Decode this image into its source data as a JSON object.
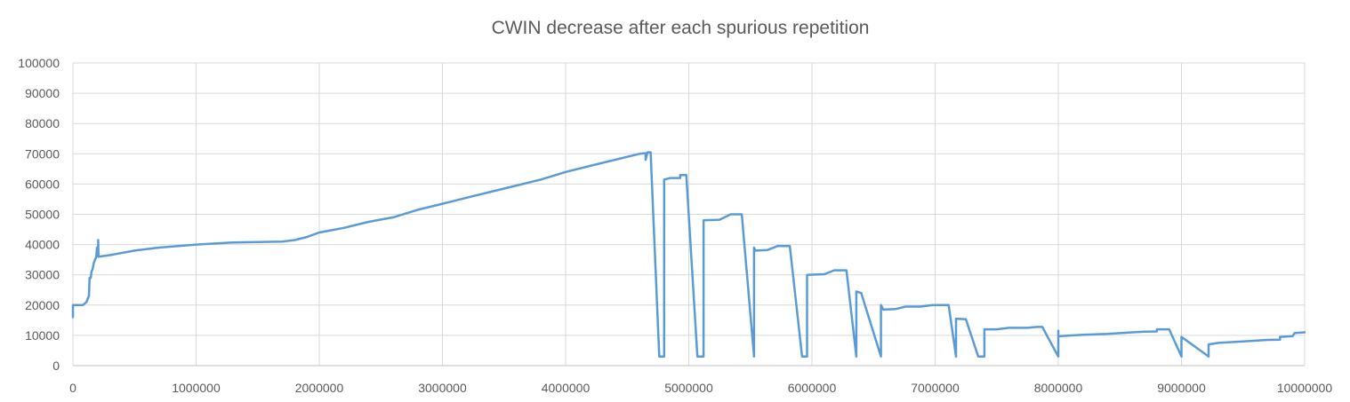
{
  "chart_data": {
    "type": "line",
    "title": "CWIN decrease after each spurious repetition",
    "xlabel": "",
    "ylabel": "",
    "xlim": [
      0,
      10000000
    ],
    "ylim": [
      0,
      100000
    ],
    "x_ticks": [
      "0",
      "1000000",
      "2000000",
      "3000000",
      "4000000",
      "5000000",
      "6000000",
      "7000000",
      "8000000",
      "9000000",
      "10000000"
    ],
    "y_ticks": [
      "0",
      "10000",
      "20000",
      "30000",
      "40000",
      "50000",
      "60000",
      "70000",
      "80000",
      "90000",
      "100000"
    ],
    "grid": true,
    "legend": "none",
    "colors": {
      "line": "#5b9bd5",
      "grid": "#d9d9d9",
      "text": "#595959"
    },
    "series": [
      {
        "points": [
          [
            0,
            16000
          ],
          [
            0,
            20000
          ],
          [
            80000,
            20000
          ],
          [
            110000,
            21000
          ],
          [
            130000,
            23000
          ],
          [
            135000,
            29000
          ],
          [
            145000,
            29000
          ],
          [
            150000,
            31000
          ],
          [
            160000,
            32000
          ],
          [
            170000,
            34000
          ],
          [
            180000,
            35000
          ],
          [
            190000,
            36000
          ],
          [
            195000,
            39000
          ],
          [
            205000,
            36000
          ],
          [
            205000,
            41500
          ],
          [
            208000,
            36000
          ],
          [
            300000,
            36500
          ],
          [
            500000,
            38000
          ],
          [
            700000,
            39000
          ],
          [
            1000000,
            40000
          ],
          [
            1300000,
            40700
          ],
          [
            1700000,
            41000
          ],
          [
            1800000,
            41500
          ],
          [
            1900000,
            42500
          ],
          [
            2000000,
            44000
          ],
          [
            2200000,
            45500
          ],
          [
            2400000,
            47500
          ],
          [
            2600000,
            49000
          ],
          [
            2800000,
            51500
          ],
          [
            3000000,
            53500
          ],
          [
            3200000,
            55500
          ],
          [
            3400000,
            57500
          ],
          [
            3600000,
            59500
          ],
          [
            3800000,
            61500
          ],
          [
            4000000,
            64000
          ],
          [
            4200000,
            66000
          ],
          [
            4400000,
            68000
          ],
          [
            4600000,
            70000
          ],
          [
            4650000,
            70200
          ],
          [
            4650000,
            68000
          ],
          [
            4665000,
            70500
          ],
          [
            4690000,
            70500
          ],
          [
            4760000,
            3000
          ],
          [
            4800000,
            3000
          ],
          [
            4800000,
            61500
          ],
          [
            4850000,
            62000
          ],
          [
            4930000,
            62000
          ],
          [
            4930000,
            63000
          ],
          [
            4980000,
            63000
          ],
          [
            5070000,
            3000
          ],
          [
            5120000,
            3000
          ],
          [
            5120000,
            48000
          ],
          [
            5250000,
            48200
          ],
          [
            5340000,
            50000
          ],
          [
            5430000,
            50000
          ],
          [
            5530000,
            3000
          ],
          [
            5530000,
            39000
          ],
          [
            5540000,
            38000
          ],
          [
            5640000,
            38200
          ],
          [
            5720000,
            39500
          ],
          [
            5820000,
            39500
          ],
          [
            5920000,
            3000
          ],
          [
            5960000,
            3000
          ],
          [
            5960000,
            30000
          ],
          [
            6100000,
            30200
          ],
          [
            6180000,
            31500
          ],
          [
            6280000,
            31500
          ],
          [
            6360000,
            3000
          ],
          [
            6360000,
            24500
          ],
          [
            6400000,
            24000
          ],
          [
            6560000,
            3000
          ],
          [
            6560000,
            20000
          ],
          [
            6580000,
            18500
          ],
          [
            6680000,
            18700
          ],
          [
            6760000,
            19500
          ],
          [
            6880000,
            19500
          ],
          [
            6980000,
            20000
          ],
          [
            7110000,
            20000
          ],
          [
            7170000,
            3000
          ],
          [
            7170000,
            15500
          ],
          [
            7250000,
            15300
          ],
          [
            7350000,
            3000
          ],
          [
            7400000,
            3000
          ],
          [
            7400000,
            12000
          ],
          [
            7500000,
            12000
          ],
          [
            7600000,
            12500
          ],
          [
            7750000,
            12500
          ],
          [
            7830000,
            12800
          ],
          [
            7870000,
            12800
          ],
          [
            8000000,
            3000
          ],
          [
            8000000,
            11500
          ],
          [
            8000000,
            9700
          ],
          [
            8200000,
            10200
          ],
          [
            8400000,
            10500
          ],
          [
            8600000,
            11000
          ],
          [
            8700000,
            11200
          ],
          [
            8800000,
            11300
          ],
          [
            8800000,
            12000
          ],
          [
            8900000,
            12000
          ],
          [
            9000000,
            3000
          ],
          [
            9000000,
            9500
          ],
          [
            9220000,
            3000
          ],
          [
            9220000,
            7000
          ],
          [
            9300000,
            7500
          ],
          [
            9500000,
            8000
          ],
          [
            9700000,
            8500
          ],
          [
            9800000,
            8600
          ],
          [
            9800000,
            9500
          ],
          [
            9900000,
            9700
          ],
          [
            9920000,
            10800
          ],
          [
            10000000,
            11000
          ]
        ]
      }
    ]
  }
}
